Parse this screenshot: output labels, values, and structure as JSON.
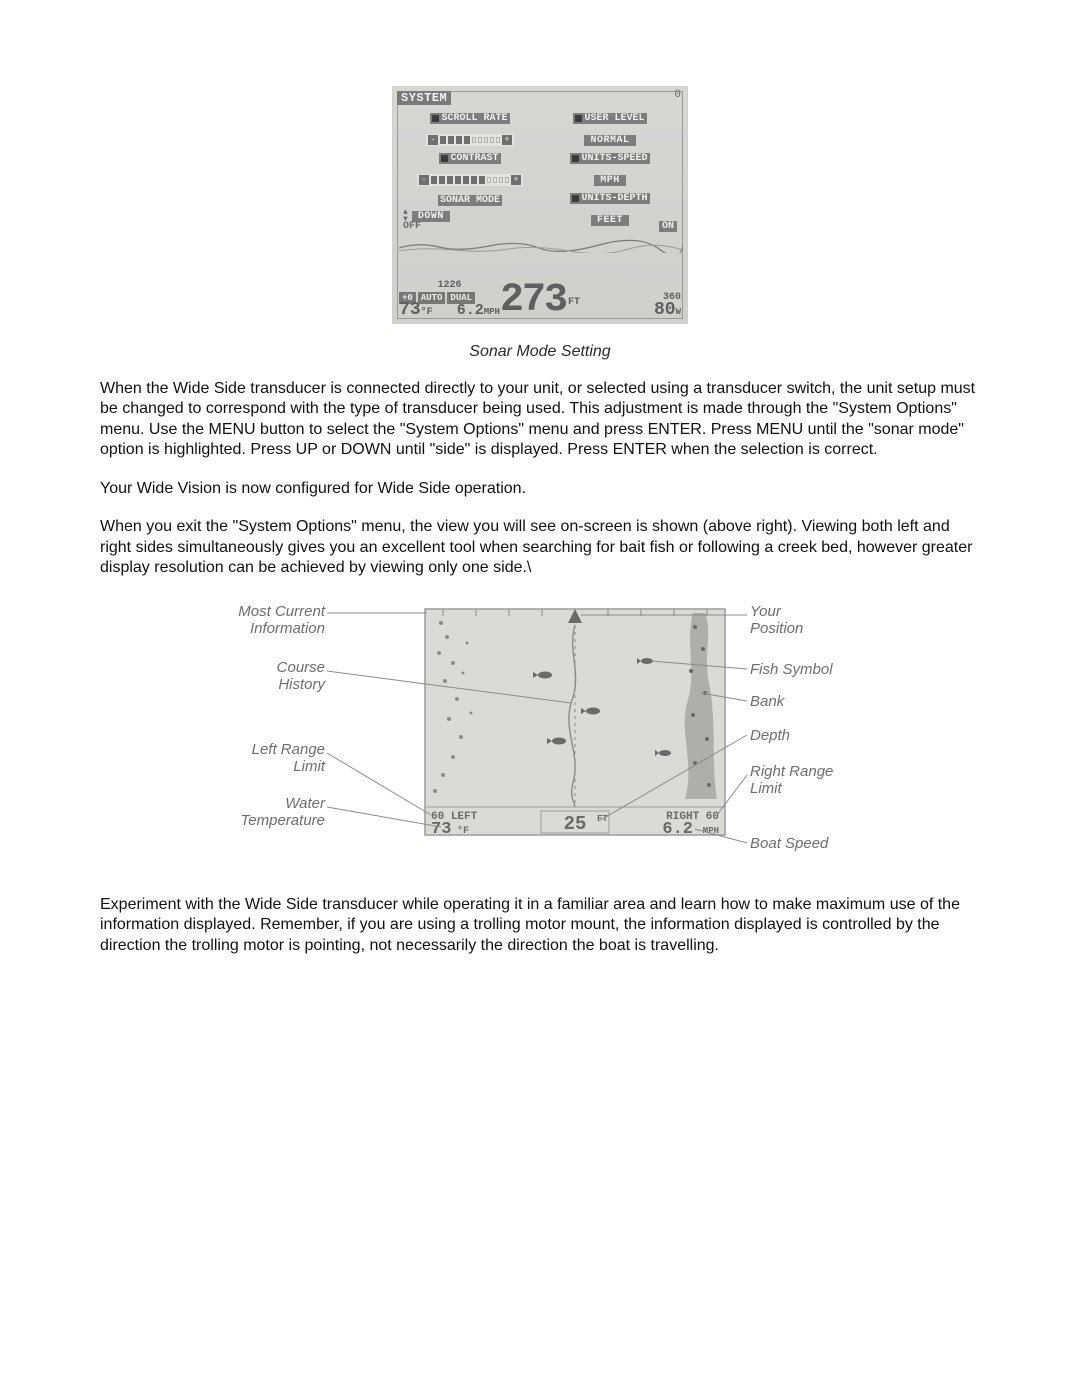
{
  "figure1": {
    "title": "SYSTEM",
    "corner_value": "0",
    "options": {
      "scroll_rate": {
        "label": "SCROLL RATE",
        "filled_segments": 4,
        "total_segments": 9
      },
      "user_level": {
        "label": "USER LEVEL",
        "value": "NORMAL"
      },
      "contrast": {
        "label": "CONTRAST",
        "filled_segments": 7,
        "total_segments": 11
      },
      "units_speed": {
        "label": "UNITS-SPEED",
        "value": "MPH"
      },
      "sonar_mode": {
        "label": "SONAR MODE",
        "value": "DOWN"
      },
      "units_depth": {
        "label": "UNITS-DEPTH",
        "value": "FEET"
      }
    },
    "off_label": "OFF",
    "on_label": "ON",
    "status_bar": {
      "top_number": "1226",
      "tags": [
        "+0",
        "AUTO",
        "DUAL"
      ],
      "temp_value": "73",
      "temp_unit": "°F",
      "speed_value": "6.2",
      "speed_unit": "MPH",
      "depth_value": "273",
      "depth_unit": "FT",
      "right_top": "360",
      "right_big": "80",
      "right_unit": "W"
    },
    "caption": "Sonar Mode Setting"
  },
  "paragraphs": {
    "p1": "When the Wide Side transducer is connected directly to your unit, or selected using a transducer switch, the unit setup must be changed to correspond with the type of transducer being used. This adjustment is made through the \"System Options\" menu. Use the MENU button to select the \"System Options\" menu and press ENTER. Press MENU until the \"sonar mode\" option is highlighted. Press UP or DOWN until \"side\" is displayed. Press ENTER when the selection is correct.",
    "p2": "Your Wide Vision is now configured for Wide Side operation.",
    "p3": "When you exit the \"System Options\" menu, the view you will see on-screen is shown (above right). Viewing both left and right sides simultaneously gives you an excellent tool when searching for bait fish or following a creek bed, however greater display resolution can be achieved by viewing only one side.\\",
    "p4": "Experiment with the Wide Side transducer while operating it in a familiar area and learn how to make maximum use of the information displayed. Remember, if you are using a trolling motor mount, the information displayed is controlled by the direction the trolling motor is pointing, not necessarily the direction the boat is travelling."
  },
  "figure2": {
    "labels_left": {
      "most_current_information": "Most Current\nInformation",
      "course_history": "Course\nHistory",
      "left_range_limit": "Left Range\nLimit",
      "water_temperature": "Water\nTemperature"
    },
    "labels_right": {
      "your_position": "Your\nPosition",
      "fish_symbol": "Fish Symbol",
      "bank": "Bank",
      "depth": "Depth",
      "right_range_limit": "Right Range\nLimit",
      "boat_speed": "Boat Speed"
    },
    "screen": {
      "left_range": "60",
      "left_label": "LEFT",
      "right_range": "60",
      "right_label": "RIGHT",
      "temp_value": "73",
      "temp_unit": "°F",
      "depth_value": "25",
      "depth_unit": "FT",
      "speed_value": "6.2",
      "speed_unit": "MPH"
    },
    "styling": {
      "line_color": "#8b8b88",
      "screen_bg": "#dadad6",
      "screen_border": "#9c9c99",
      "text_color": "#6e6e6c",
      "tick_count": 9
    }
  },
  "colors": {
    "page_bg": "#ffffff",
    "body_text": "#111111",
    "lcd_bg_top": "#d6d6d3",
    "lcd_bg_bottom": "#cfcfcc",
    "lcd_dark": "#7a7a78",
    "lcd_text_light": "#f1f1ee"
  },
  "typography": {
    "body_font": "Arial",
    "body_size_pt": 12,
    "caption_size_pt": 12,
    "lcd_font": "Courier New"
  }
}
